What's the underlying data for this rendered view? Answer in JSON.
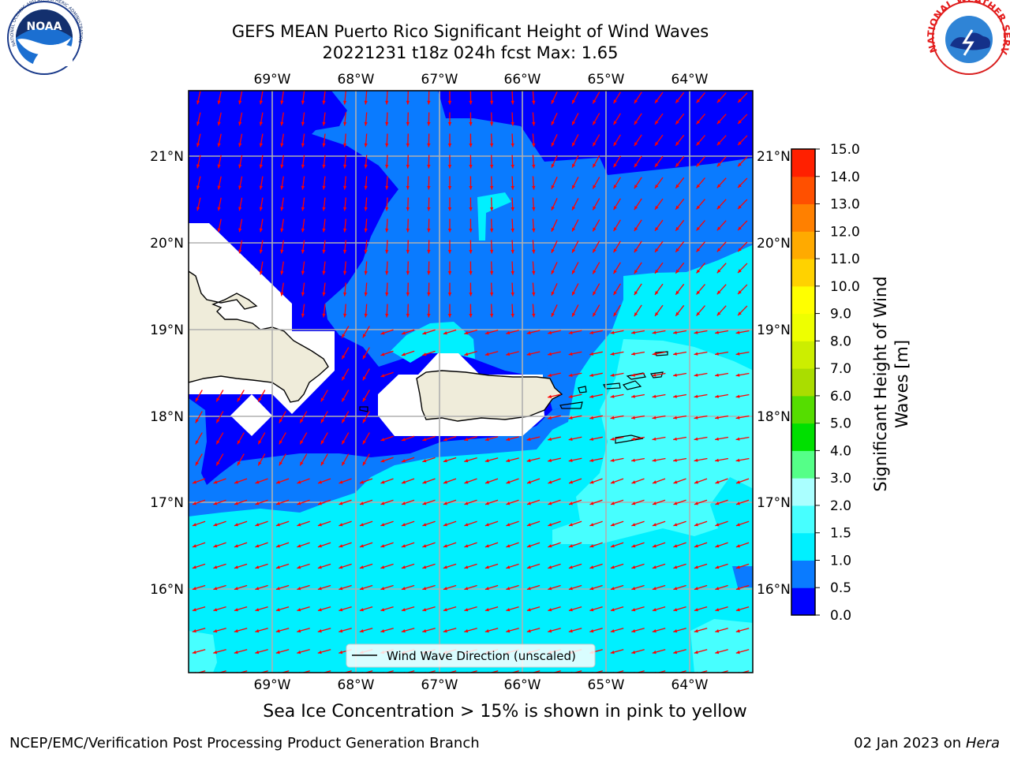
{
  "title": {
    "line1": "GEFS MEAN Puerto Rico Significant Height of Wind Waves",
    "line2": "20221231 t18z 024h fcst   Max: 1.65"
  },
  "map": {
    "lon_labels": [
      "69°W",
      "68°W",
      "67°W",
      "66°W",
      "65°W",
      "64°W"
    ],
    "lat_labels": [
      "21°N",
      "20°N",
      "19°N",
      "18°N",
      "17°N",
      "16°N"
    ],
    "legend_label": "Wind Wave Direction (unscaled)",
    "arrow_color": "#ff0000",
    "land_color": "#efecda"
  },
  "colorbar": {
    "label_line1": "Significant Height of Wind",
    "label_line2": "Waves [m]",
    "ticks": [
      "0.0",
      "0.5",
      "1.0",
      "1.5",
      "2.0",
      "3.0",
      "4.0",
      "5.0",
      "6.0",
      "7.0",
      "8.0",
      "9.0",
      "10.0",
      "11.0",
      "12.0",
      "13.0",
      "14.0",
      "15.0"
    ],
    "colors": [
      "#0000ff",
      "#0a7bff",
      "#00f0ff",
      "#47ffff",
      "#aaffff",
      "#55ff88",
      "#00e000",
      "#55dd00",
      "#aadd00",
      "#ccee00",
      "#eeff00",
      "#ffff00",
      "#ffd200",
      "#ffaa00",
      "#ff8000",
      "#ff5000",
      "#ff2000",
      "#ff0000"
    ]
  },
  "subtitle": "Sea Ice Concentration > 15% is shown in pink to yellow",
  "footer": {
    "left": "NCEP/EMC/Verification Post Processing Product Generation Branch",
    "right_prefix": "02 Jan 2023 on ",
    "right_host": "Hera"
  },
  "logos": {
    "noaa": "NOAA",
    "noaa_ring": "NATIONAL OCEANIC AND ATMOSPHERIC ADMINISTRATION · U.S. DEPARTMENT OF COMMERCE",
    "nws_ring": "NATIONAL WEATHER SERVICE"
  }
}
